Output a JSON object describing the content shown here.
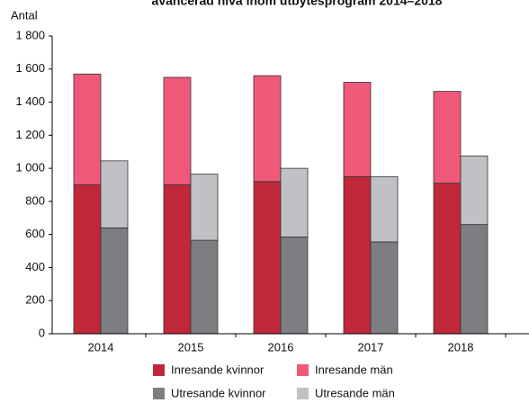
{
  "chart_data": {
    "type": "bar",
    "title": "avancerad nivå inom utbytesprogram 2014–2018",
    "y_label": "Antal",
    "categories": [
      "2014",
      "2015",
      "2016",
      "2017",
      "2018"
    ],
    "series": [
      {
        "name": "Inresande kvinnor",
        "color": "#c0283a",
        "values": [
          900,
          900,
          920,
          950,
          910
        ]
      },
      {
        "name": "Inresande män",
        "color": "#f0587a",
        "values": [
          670,
          650,
          640,
          570,
          555
        ]
      },
      {
        "name": "Utresande kvinnor",
        "color": "#7d7e82",
        "values": [
          640,
          565,
          585,
          555,
          660
        ]
      },
      {
        "name": "Utresande män",
        "color": "#c0c1c4",
        "values": [
          405,
          400,
          415,
          395,
          415
        ]
      }
    ],
    "ylim": [
      0,
      1800
    ],
    "yticks": [
      0,
      200,
      400,
      600,
      800,
      {
        "value": 1000,
        "label": "1 000"
      },
      {
        "value": 1200,
        "label": "1 200"
      },
      {
        "value": 1400,
        "label": "1 400"
      },
      {
        "value": 1600,
        "label": "1 600"
      },
      {
        "value": 1800,
        "label": "1 800"
      }
    ]
  }
}
